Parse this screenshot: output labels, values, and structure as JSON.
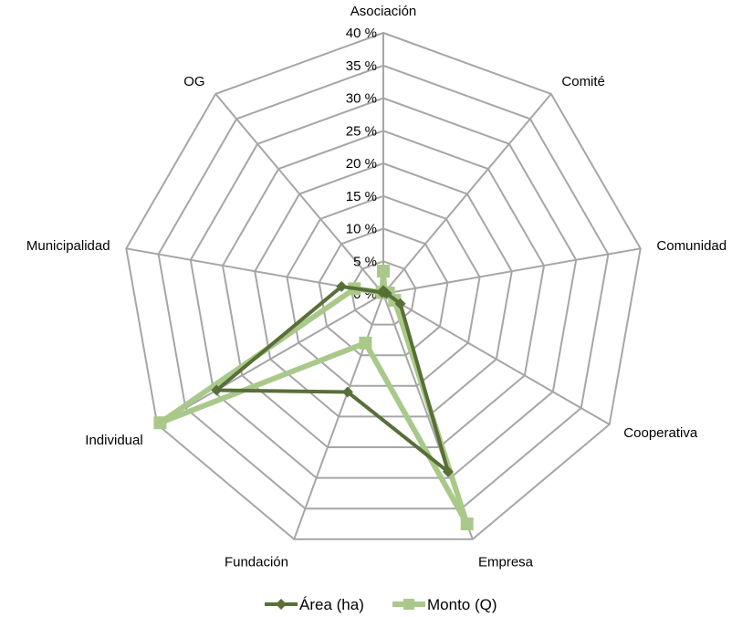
{
  "chart_data": {
    "type": "radar",
    "categories": [
      "Asociación",
      "Comité",
      "Comunidad",
      "Cooperativa",
      "Empresa",
      "Fundación",
      "Individual",
      "Municipalidad",
      "OG"
    ],
    "radial_ticks": [
      "0 %",
      "5 %",
      "10 %",
      "15 %",
      "20 %",
      "25 %",
      "30 %",
      "35 %",
      "40 %"
    ],
    "rlim": [
      0,
      40
    ],
    "grid": true,
    "legend_position": "bottom",
    "series": [
      {
        "name": "Área (ha)",
        "values": [
          0.5,
          0.3,
          0.5,
          3.0,
          29.0,
          16.0,
          29.5,
          6.5,
          0.3
        ],
        "color": "#586f38",
        "marker": "diamond"
      },
      {
        "name": "Monto (Q)",
        "values": [
          3.5,
          0.3,
          0.8,
          2.0,
          37.5,
          8.0,
          39.5,
          4.5,
          0.3
        ],
        "color": "#a9c98a",
        "marker": "square"
      }
    ],
    "title": ""
  }
}
